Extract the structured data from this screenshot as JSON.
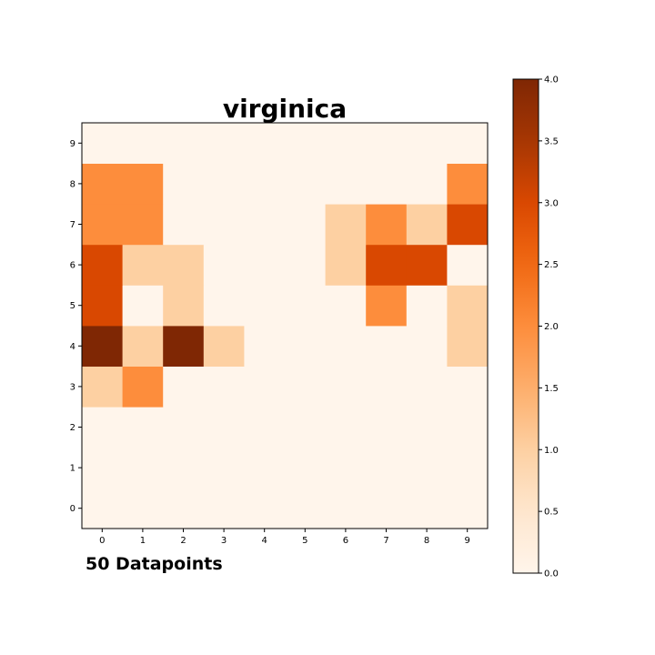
{
  "chart_data": {
    "type": "heatmap",
    "title": "virginica",
    "annotation": "50 Datapoints",
    "x_ticks": [
      "0",
      "1",
      "2",
      "3",
      "4",
      "5",
      "6",
      "7",
      "8",
      "9"
    ],
    "y_ticks": [
      "0",
      "1",
      "2",
      "3",
      "4",
      "5",
      "6",
      "7",
      "8",
      "9"
    ],
    "values": [
      [
        0,
        0,
        0,
        0,
        0,
        0,
        0,
        0,
        0,
        0
      ],
      [
        0,
        0,
        0,
        0,
        0,
        0,
        0,
        0,
        0,
        0
      ],
      [
        0,
        0,
        0,
        0,
        0,
        0,
        0,
        0,
        0,
        0
      ],
      [
        1,
        2,
        0,
        0,
        0,
        0,
        0,
        0,
        0,
        0
      ],
      [
        4,
        1,
        4,
        1,
        0,
        0,
        0,
        0,
        0,
        1
      ],
      [
        3,
        0,
        1,
        0,
        0,
        0,
        0,
        2,
        0,
        1
      ],
      [
        3,
        1,
        1,
        0,
        0,
        0,
        1,
        3,
        3,
        0
      ],
      [
        2,
        2,
        0,
        0,
        0,
        0,
        1,
        2,
        1,
        3
      ],
      [
        2,
        2,
        0,
        0,
        0,
        0,
        0,
        0,
        0,
        2
      ],
      [
        0,
        0,
        0,
        0,
        0,
        0,
        0,
        0,
        0,
        0
      ]
    ],
    "colormap": "Oranges",
    "vmin": 0,
    "vmax": 4,
    "colorbar_ticks": [
      "0.0",
      "0.5",
      "1.0",
      "1.5",
      "2.0",
      "2.5",
      "3.0",
      "3.5",
      "4.0"
    ],
    "grid": false
  }
}
